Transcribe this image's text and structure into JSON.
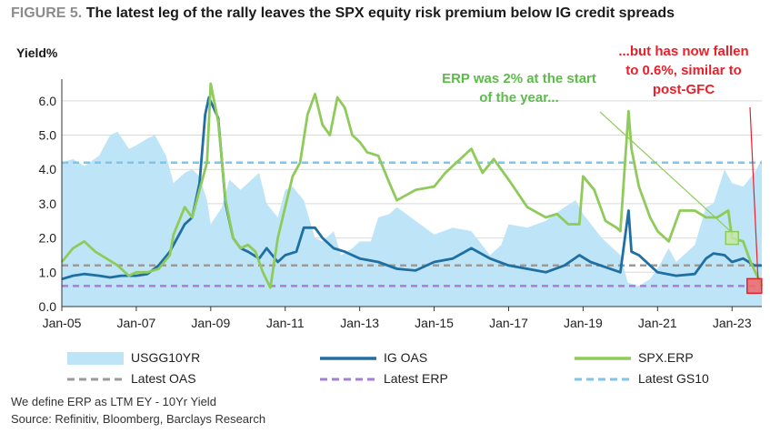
{
  "header": {
    "figure_label": "FIGURE 5.",
    "title": "The latest leg of the rally leaves the SPX equity risk premium below IG credit spreads"
  },
  "annotations": {
    "erp_start": "ERP was 2% at the start of the year...",
    "erp_now": "...but has now fallen to 0.6%, similar to post-GFC"
  },
  "footnotes": {
    "definition": "We define ERP as LTM EY - 10Yr Yield",
    "source": "Source: Refinitiv, Bloomberg, Barclays Research"
  },
  "colors": {
    "usgg10yr": "#bde5f7",
    "ig_oas": "#1f6fa3",
    "spx_erp": "#8fcb5a",
    "latest_oas": "#9a9a9a",
    "latest_erp": "#a57fd4",
    "latest_gs10": "#82c3e8",
    "highlight_green": "#c4e6a6",
    "highlight_red": "#f0676a",
    "gridline": "#d9d9d9"
  },
  "chart_data": {
    "type": "line",
    "title": "The latest leg of the rally leaves the SPX equity risk premium below IG credit spreads",
    "xlabel": "",
    "ylabel": "Yield%",
    "xlim": [
      2005.0,
      2023.8
    ],
    "ylim": [
      0,
      6.5
    ],
    "x_ticks": [
      {
        "label": "Jan-05",
        "x": 2005
      },
      {
        "label": "Jan-07",
        "x": 2007
      },
      {
        "label": "Jan-09",
        "x": 2009
      },
      {
        "label": "Jan-11",
        "x": 2011
      },
      {
        "label": "Jan-13",
        "x": 2013
      },
      {
        "label": "Jan-15",
        "x": 2015
      },
      {
        "label": "Jan-17",
        "x": 2017
      },
      {
        "label": "Jan-19",
        "x": 2019
      },
      {
        "label": "Jan-21",
        "x": 2021
      },
      {
        "label": "Jan-23",
        "x": 2023
      }
    ],
    "y_ticks": [
      "0.0",
      "1.0",
      "2.0",
      "3.0",
      "4.0",
      "5.0",
      "6.0"
    ],
    "grid": "horizontal",
    "legend_position": "bottom",
    "series": [
      {
        "name": "USGG10YR",
        "kind": "area",
        "x": [
          2005.0,
          2005.3,
          2005.6,
          2006.0,
          2006.3,
          2006.5,
          2006.8,
          2007.0,
          2007.3,
          2007.5,
          2007.8,
          2008.0,
          2008.3,
          2008.5,
          2008.7,
          2008.9,
          2009.0,
          2009.3,
          2009.5,
          2009.8,
          2010.0,
          2010.3,
          2010.5,
          2010.8,
          2011.0,
          2011.2,
          2011.5,
          2011.8,
          2012.0,
          2012.3,
          2012.5,
          2012.8,
          2013.0,
          2013.3,
          2013.5,
          2013.8,
          2014.0,
          2014.5,
          2015.0,
          2015.5,
          2016.0,
          2016.5,
          2016.8,
          2017.0,
          2017.5,
          2018.0,
          2018.5,
          2018.8,
          2019.0,
          2019.5,
          2019.8,
          2020.0,
          2020.2,
          2020.5,
          2020.8,
          2021.0,
          2021.3,
          2021.5,
          2021.8,
          2022.0,
          2022.3,
          2022.5,
          2022.8,
          2023.0,
          2023.3,
          2023.6,
          2023.8
        ],
        "values": [
          4.2,
          4.3,
          4.1,
          4.4,
          5.0,
          5.1,
          4.6,
          4.7,
          4.9,
          5.0,
          4.4,
          3.6,
          3.9,
          4.0,
          3.8,
          3.1,
          2.4,
          2.9,
          3.7,
          3.4,
          3.6,
          3.9,
          3.0,
          2.6,
          3.4,
          3.5,
          3.1,
          2.0,
          1.9,
          2.2,
          1.5,
          1.7,
          1.9,
          1.9,
          2.6,
          2.7,
          2.9,
          2.5,
          2.1,
          2.3,
          2.2,
          1.5,
          1.8,
          2.4,
          2.3,
          2.5,
          2.9,
          3.1,
          2.7,
          2.0,
          1.7,
          1.5,
          0.7,
          0.6,
          0.8,
          1.1,
          1.7,
          1.3,
          1.6,
          1.8,
          2.9,
          3.0,
          4.0,
          3.6,
          3.5,
          3.9,
          4.3
        ]
      },
      {
        "name": "IG OAS",
        "kind": "line",
        "x": [
          2005.0,
          2005.3,
          2005.6,
          2006.0,
          2006.3,
          2006.6,
          2007.0,
          2007.3,
          2007.6,
          2007.9,
          2008.0,
          2008.3,
          2008.5,
          2008.7,
          2008.85,
          2008.95,
          2009.2,
          2009.4,
          2009.6,
          2009.8,
          2010.0,
          2010.3,
          2010.5,
          2010.8,
          2011.0,
          2011.3,
          2011.5,
          2011.8,
          2012.0,
          2012.3,
          2012.6,
          2013.0,
          2013.5,
          2014.0,
          2014.5,
          2015.0,
          2015.5,
          2016.0,
          2016.5,
          2017.0,
          2017.5,
          2018.0,
          2018.5,
          2018.9,
          2019.2,
          2019.6,
          2020.0,
          2020.22,
          2020.3,
          2020.5,
          2020.8,
          2021.0,
          2021.5,
          2022.0,
          2022.3,
          2022.5,
          2022.8,
          2023.0,
          2023.3,
          2023.6,
          2023.8
        ],
        "values": [
          0.8,
          0.9,
          0.95,
          0.9,
          0.85,
          0.9,
          0.9,
          0.95,
          1.2,
          1.6,
          1.8,
          2.4,
          2.6,
          3.6,
          5.6,
          6.1,
          5.5,
          3.0,
          2.0,
          1.7,
          1.6,
          1.4,
          1.7,
          1.3,
          1.5,
          1.6,
          2.3,
          2.3,
          2.0,
          1.7,
          1.6,
          1.4,
          1.3,
          1.1,
          1.05,
          1.3,
          1.4,
          1.7,
          1.4,
          1.2,
          1.1,
          1.0,
          1.2,
          1.5,
          1.3,
          1.15,
          1.0,
          2.8,
          1.6,
          1.5,
          1.2,
          1.0,
          0.9,
          0.95,
          1.4,
          1.55,
          1.5,
          1.3,
          1.4,
          1.2,
          1.2
        ]
      },
      {
        "name": "SPX.ERP",
        "kind": "line",
        "x": [
          2005.0,
          2005.3,
          2005.6,
          2005.9,
          2006.2,
          2006.5,
          2006.8,
          2007.0,
          2007.3,
          2007.6,
          2007.9,
          2008.0,
          2008.3,
          2008.5,
          2008.7,
          2008.9,
          2009.0,
          2009.2,
          2009.4,
          2009.6,
          2009.8,
          2010.0,
          2010.2,
          2010.4,
          2010.6,
          2010.8,
          2011.0,
          2011.2,
          2011.4,
          2011.6,
          2011.8,
          2012.0,
          2012.2,
          2012.4,
          2012.6,
          2012.8,
          2013.0,
          2013.2,
          2013.5,
          2013.8,
          2014.0,
          2014.5,
          2015.0,
          2015.3,
          2015.6,
          2016.0,
          2016.3,
          2016.6,
          2017.0,
          2017.5,
          2018.0,
          2018.3,
          2018.6,
          2018.9,
          2019.0,
          2019.3,
          2019.6,
          2019.9,
          2020.0,
          2020.22,
          2020.3,
          2020.5,
          2020.8,
          2021.0,
          2021.3,
          2021.6,
          2022.0,
          2022.3,
          2022.6,
          2022.9,
          2023.0,
          2023.3,
          2023.5,
          2023.8
        ],
        "values": [
          1.3,
          1.7,
          1.9,
          1.6,
          1.4,
          1.2,
          0.9,
          1.0,
          1.0,
          1.1,
          1.5,
          2.1,
          2.9,
          2.6,
          3.4,
          4.2,
          6.5,
          5.4,
          3.1,
          2.0,
          1.7,
          1.8,
          1.6,
          1.0,
          0.55,
          2.0,
          2.9,
          3.8,
          4.2,
          5.6,
          6.2,
          5.3,
          5.0,
          6.1,
          5.8,
          5.0,
          4.8,
          4.5,
          4.4,
          3.6,
          3.1,
          3.4,
          3.5,
          3.9,
          4.2,
          4.6,
          3.9,
          4.3,
          3.7,
          2.9,
          2.6,
          2.7,
          2.4,
          2.4,
          3.8,
          3.4,
          2.5,
          2.3,
          2.2,
          5.7,
          4.6,
          3.5,
          2.6,
          2.2,
          1.9,
          2.8,
          2.8,
          2.6,
          2.6,
          2.8,
          2.0,
          1.9,
          1.3,
          0.6
        ]
      },
      {
        "name": "Latest OAS",
        "kind": "reference",
        "value": 1.2
      },
      {
        "name": "Latest ERP",
        "kind": "reference",
        "value": 0.6
      },
      {
        "name": "Latest GS10",
        "kind": "reference",
        "value": 4.2
      }
    ],
    "highlights": [
      {
        "color": "green",
        "x": 2023.0,
        "y": 2.0
      },
      {
        "color": "red",
        "x": 2023.6,
        "y": 0.6
      }
    ]
  }
}
